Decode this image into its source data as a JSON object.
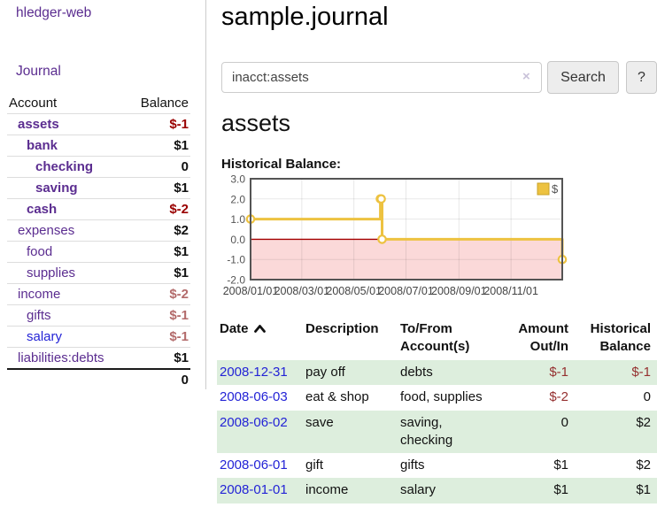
{
  "app": {
    "brand": "hledger-web"
  },
  "sidebar": {
    "nav_journal": "Journal",
    "accounts": {
      "col_account": "Account",
      "col_balance": "Balance",
      "rows": [
        {
          "name": "assets",
          "balance": "$-1"
        },
        {
          "name": "bank",
          "balance": "$1"
        },
        {
          "name": "checking",
          "balance": "0"
        },
        {
          "name": "saving",
          "balance": "$1"
        },
        {
          "name": "cash",
          "balance": "$-2"
        },
        {
          "name": "expenses",
          "balance": "$2"
        },
        {
          "name": "food",
          "balance": "$1"
        },
        {
          "name": "supplies",
          "balance": "$1"
        },
        {
          "name": "income",
          "balance": "$-2"
        },
        {
          "name": "gifts",
          "balance": "$-1"
        },
        {
          "name": "salary",
          "balance": "$-1"
        },
        {
          "name": "liabilities:debts",
          "balance": "$1"
        }
      ],
      "total": "0"
    }
  },
  "main": {
    "title": "sample.journal",
    "search": {
      "value": "inacct:assets",
      "clear_icon": "×",
      "search_button": "Search",
      "help_button": "?"
    },
    "heading": "assets",
    "chart_title": "Historical Balance:"
  },
  "chart_data": {
    "type": "line",
    "title": "Historical Balance",
    "step": true,
    "series": [
      {
        "name": "$",
        "color": "#edc240",
        "points": [
          [
            "2008-01-01",
            1
          ],
          [
            "2008-06-01",
            2
          ],
          [
            "2008-06-02",
            2
          ],
          [
            "2008-06-03",
            0
          ],
          [
            "2008-12-31",
            -1
          ]
        ]
      }
    ],
    "xlim": [
      "2008-01-01",
      "2008-12-31"
    ],
    "ylim": [
      -2,
      3
    ],
    "x_ticks": [
      "2008/01/01",
      "2008/03/01",
      "2008/05/01",
      "2008/07/01",
      "2008/09/01",
      "2008/11/01"
    ],
    "y_ticks": [
      3.0,
      2.0,
      1.0,
      0.0,
      -1.0,
      -2.0
    ],
    "grid": true,
    "legend": {
      "label": "$",
      "position": "top-right"
    },
    "negative_region_color": "#fbd9d9",
    "zero_line_color": "#a40000",
    "border_color": "#545454",
    "tick_label_color": "#545454"
  },
  "register": {
    "headers": {
      "date": "Date",
      "description": "Description",
      "accounts": "To/From Account(s)",
      "amount": "Amount Out/In",
      "balance": "Historical Balance"
    },
    "sort_icon": "chevron-up",
    "rows": [
      {
        "date": "2008-12-31",
        "description": "pay off",
        "accounts": "debts",
        "amount": "$-1",
        "balance": "$-1"
      },
      {
        "date": "2008-06-03",
        "description": "eat & shop",
        "accounts": "food, supplies",
        "amount": "$-2",
        "balance": "0"
      },
      {
        "date": "2008-06-02",
        "description": "save",
        "accounts": "saving, checking",
        "amount": "0",
        "balance": "$2"
      },
      {
        "date": "2008-06-01",
        "description": "gift",
        "accounts": "gifts",
        "amount": "$1",
        "balance": "$2"
      },
      {
        "date": "2008-01-01",
        "description": "income",
        "accounts": "salary",
        "amount": "$1",
        "balance": "$1"
      }
    ]
  },
  "colors": {
    "account_link": "#5b2d90",
    "plain_link": "#2323d6",
    "negative_strong": "#990000",
    "negative_soft": "#b36b6b",
    "negative_table": "#953030",
    "row_stripe": "#ddeedd",
    "chart_line": "#edc240",
    "chart_negative_fill": "#fbd9d9",
    "chart_zero_line": "#a40000"
  }
}
